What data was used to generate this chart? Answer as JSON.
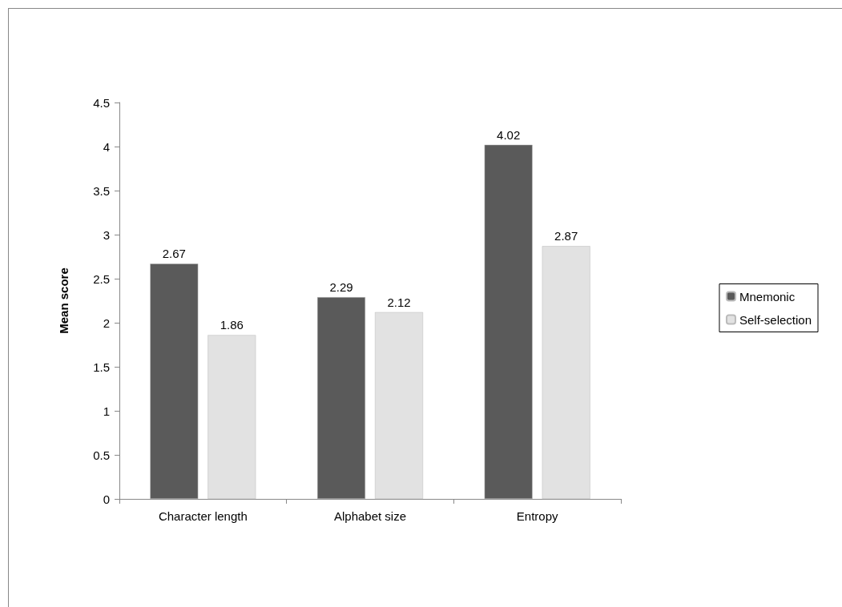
{
  "chart_data": {
    "type": "bar",
    "ylabel": "Mean score",
    "categories": [
      "Character length",
      "Alphabet size",
      "Entropy"
    ],
    "series": [
      {
        "name": "Mnemonic",
        "color": "#5a5a5a",
        "values": [
          2.67,
          2.29,
          4.02
        ]
      },
      {
        "name": "Self-selection",
        "color": "#e2e2e2",
        "values": [
          1.86,
          2.12,
          2.87
        ]
      }
    ],
    "ylim": [
      0,
      4.5
    ],
    "yticks": [
      0,
      0.5,
      1,
      1.5,
      2,
      2.5,
      3,
      3.5,
      4,
      4.5
    ],
    "grid": false,
    "legend": "right",
    "data_labels": true
  }
}
